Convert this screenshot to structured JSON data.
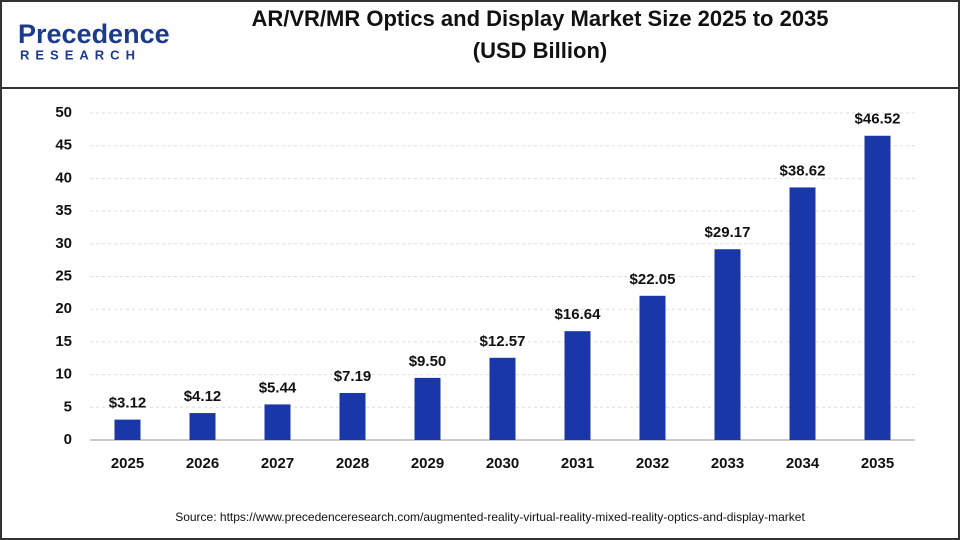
{
  "logo": {
    "name": "Precedence",
    "tagline": "RESEARCH"
  },
  "chart_data": {
    "type": "bar",
    "title": "AR/VR/MR Optics and Display Market Size 2025 to 2035",
    "subtitle": "(USD Billion)",
    "categories": [
      "2025",
      "2026",
      "2027",
      "2028",
      "2029",
      "2030",
      "2031",
      "2032",
      "2033",
      "2034",
      "2035"
    ],
    "values": [
      3.12,
      4.12,
      5.44,
      7.19,
      9.5,
      12.57,
      16.64,
      22.05,
      29.17,
      38.62,
      46.52
    ],
    "value_labels": [
      "$3.12",
      "$4.12",
      "$5.44",
      "$7.19",
      "$9.50",
      "$12.57",
      "$16.64",
      "$22.05",
      "$29.17",
      "$38.62",
      "$46.52"
    ],
    "color": "#1937a8",
    "ylim": [
      0,
      50
    ],
    "yticks": [
      0,
      5,
      10,
      15,
      20,
      25,
      30,
      35,
      40,
      45,
      50
    ],
    "grid": true
  },
  "source": "Source: https://www.precedenceresearch.com/augmented-reality-virtual-reality-mixed-reality-optics-and-display-market"
}
